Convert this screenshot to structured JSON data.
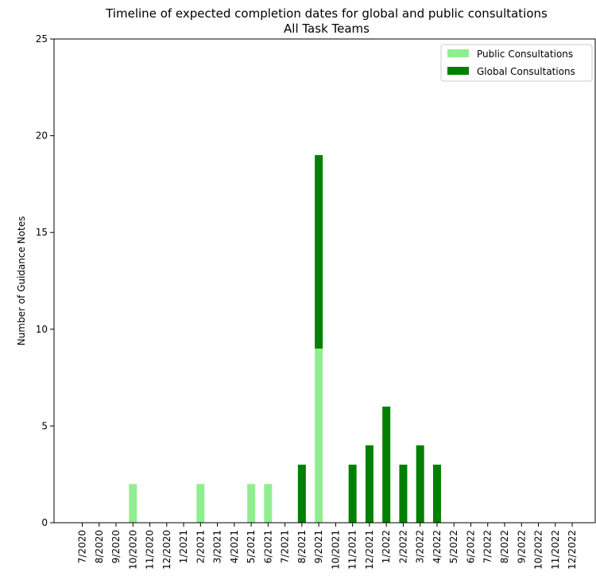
{
  "chart_data": {
    "type": "bar",
    "stacked": true,
    "title": "Timeline of expected completion dates for global and public consultations",
    "subtitle": "All Task Teams",
    "xlabel": "",
    "ylabel": "Number of Guidance Notes",
    "ylim": [
      0,
      25
    ],
    "yticks": [
      0,
      5,
      10,
      15,
      20,
      25
    ],
    "categories": [
      "7/2020",
      "8/2020",
      "9/2020",
      "10/2020",
      "11/2020",
      "12/2020",
      "1/2021",
      "2/2021",
      "3/2021",
      "4/2021",
      "5/2021",
      "6/2021",
      "7/2021",
      "8/2021",
      "9/2021",
      "10/2021",
      "11/2021",
      "12/2021",
      "1/2022",
      "2/2022",
      "3/2022",
      "4/2022",
      "5/2022",
      "6/2022",
      "7/2022",
      "8/2022",
      "9/2022",
      "10/2022",
      "11/2022",
      "12/2022"
    ],
    "series": [
      {
        "name": "Public Consultations",
        "color": "#90ee90",
        "values": [
          0,
          0,
          0,
          2,
          0,
          0,
          0,
          2,
          0,
          0,
          2,
          2,
          0,
          0,
          9,
          0,
          0,
          0,
          0,
          0,
          0,
          0,
          0,
          0,
          0,
          0,
          0,
          0,
          0,
          0
        ]
      },
      {
        "name": "Global Consultations",
        "color": "#008000",
        "values": [
          0,
          0,
          0,
          0,
          0,
          0,
          0,
          0,
          0,
          0,
          0,
          0,
          0,
          3,
          10,
          0,
          3,
          4,
          6,
          3,
          4,
          3,
          0,
          0,
          0,
          0,
          0,
          0,
          0,
          0
        ]
      }
    ],
    "legend_position": "top-right",
    "grid": false
  }
}
